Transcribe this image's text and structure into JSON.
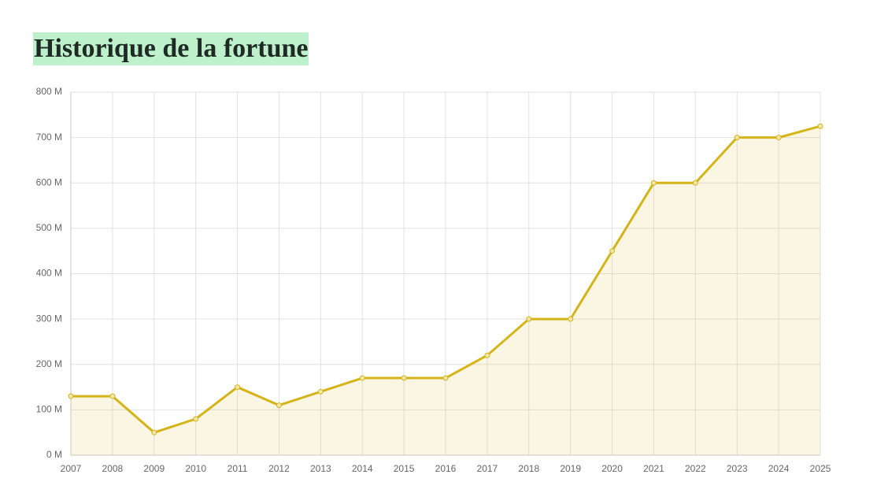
{
  "chart_data": {
    "type": "line",
    "title": "Historique de la fortune",
    "categories": [
      "2007",
      "2008",
      "2009",
      "2010",
      "2011",
      "2012",
      "2013",
      "2014",
      "2015",
      "2016",
      "2017",
      "2018",
      "2019",
      "2020",
      "2021",
      "2022",
      "2023",
      "2024",
      "2025"
    ],
    "values": [
      130,
      130,
      50,
      80,
      150,
      110,
      140,
      170,
      170,
      170,
      220,
      300,
      300,
      450,
      600,
      600,
      700,
      700,
      725
    ],
    "color": "#d4b418",
    "fill": true,
    "grid": true,
    "ylim": [
      0,
      800
    ],
    "yticks": [
      {
        "value": 0,
        "label": "0 M"
      },
      {
        "value": 100,
        "label": "100 M"
      },
      {
        "value": 200,
        "label": "200 M"
      },
      {
        "value": 300,
        "label": "300 M"
      },
      {
        "value": 400,
        "label": "400 M"
      },
      {
        "value": 500,
        "label": "500 M"
      },
      {
        "value": 600,
        "label": "600 M"
      },
      {
        "value": 700,
        "label": "700 M"
      },
      {
        "value": 800,
        "label": "800 M"
      }
    ]
  }
}
